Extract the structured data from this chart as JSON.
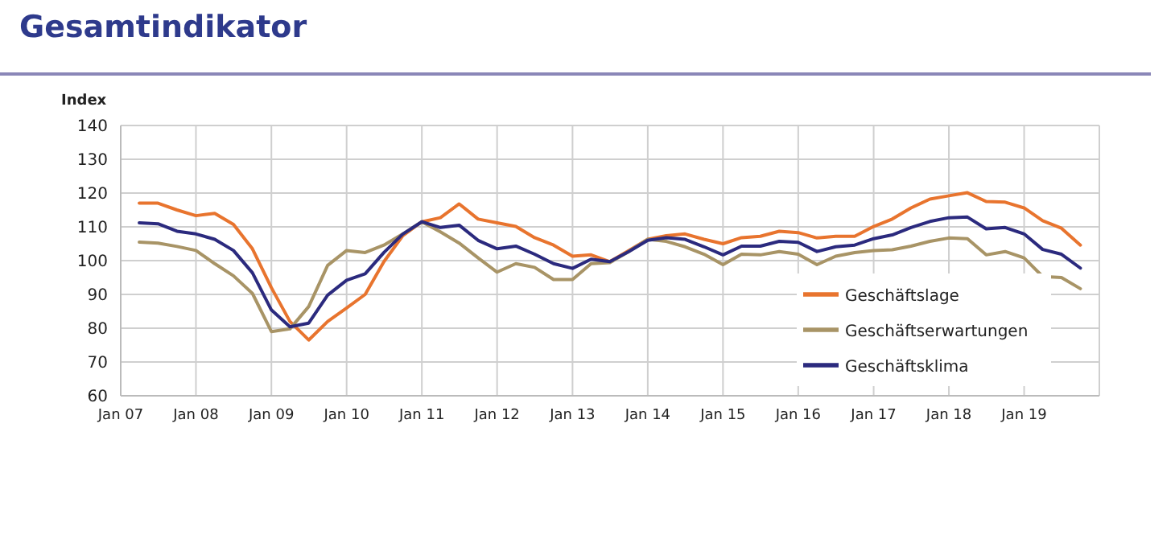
{
  "chart_data": {
    "type": "line",
    "title": "Gesamtindikator",
    "ylabel": "Index",
    "x": [
      "2007-04",
      "2007-07",
      "2007-10",
      "2008-01",
      "2008-04",
      "2008-07",
      "2008-10",
      "2009-01",
      "2009-04",
      "2009-07",
      "2009-10",
      "2010-01",
      "2010-04",
      "2010-07",
      "2010-10",
      "2011-01",
      "2011-04",
      "2011-07",
      "2011-10",
      "2012-01",
      "2012-04",
      "2012-07",
      "2012-10",
      "2013-01",
      "2013-04",
      "2013-07",
      "2013-10",
      "2014-01",
      "2014-04",
      "2014-07",
      "2014-10",
      "2015-01",
      "2015-04",
      "2015-07",
      "2015-10",
      "2016-01",
      "2016-04",
      "2016-07",
      "2016-10",
      "2017-01",
      "2017-04",
      "2017-07",
      "2017-10",
      "2018-01",
      "2018-04",
      "2018-07",
      "2018-10",
      "2019-01",
      "2019-04",
      "2019-07",
      "2019-10"
    ],
    "series": [
      {
        "name": "Geschäftslage",
        "color": "#e8742e",
        "values": [
          117,
          117,
          115,
          113.3,
          114,
          110.7,
          103.5,
          92,
          82,
          76.5,
          82,
          86,
          90,
          99.7,
          107.4,
          111.5,
          112.7,
          116.8,
          112.3,
          111.2,
          110.1,
          106.8,
          104.6,
          101.3,
          101.7,
          99.7,
          103,
          106.3,
          107.4,
          107.9,
          106.3,
          105,
          106.8,
          107.2,
          108.7,
          108.3,
          106.7,
          107.2,
          107.2,
          110.1,
          112.3,
          115.6,
          118.2,
          119.2,
          120.1,
          117.5,
          117.3,
          115.6,
          111.8,
          109.6,
          104.6
        ]
      },
      {
        "name": "Geschäftserwartungen",
        "color": "#a89466",
        "values": [
          105.5,
          105.2,
          104.2,
          103,
          99.1,
          95.5,
          90.3,
          79,
          79.8,
          86.4,
          98.6,
          103,
          102.4,
          104.6,
          107.9,
          111.5,
          108.5,
          105.2,
          100.8,
          96.6,
          99.1,
          98,
          94.4,
          94.4,
          99.1,
          99.4,
          102.7,
          106.3,
          105.7,
          104.1,
          101.9,
          98.8,
          101.9,
          101.7,
          102.7,
          101.9,
          98.8,
          101.3,
          102.4,
          103,
          103.2,
          104.3,
          105.7,
          106.7,
          106.5,
          101.7,
          102.7,
          100.8,
          95.3,
          95,
          91.7
        ]
      },
      {
        "name": "Geschäftsklima",
        "color": "#2b2a7e",
        "values": [
          111.2,
          110.9,
          108.7,
          107.9,
          106.3,
          103,
          96.4,
          85.4,
          80.4,
          81.5,
          89.8,
          94.2,
          96.1,
          102.4,
          107.9,
          111.5,
          109.8,
          110.5,
          106,
          103.5,
          104.3,
          101.9,
          99.1,
          97.7,
          100.4,
          99.7,
          102.7,
          106,
          106.8,
          106.3,
          104.1,
          101.7,
          104.3,
          104.3,
          105.7,
          105.4,
          102.7,
          104.1,
          104.6,
          106.5,
          107.6,
          109.8,
          111.6,
          112.7,
          112.9,
          109.4,
          109.8,
          107.9,
          103.3,
          101.9,
          97.8
        ]
      }
    ],
    "xlim": [
      "2007-01",
      "2020-01"
    ],
    "xticks": [
      {
        "value": "2007-01",
        "label": "Jan 07"
      },
      {
        "value": "2008-01",
        "label": "Jan 08"
      },
      {
        "value": "2009-01",
        "label": "Jan 09"
      },
      {
        "value": "2010-01",
        "label": "Jan 10"
      },
      {
        "value": "2011-01",
        "label": "Jan 11"
      },
      {
        "value": "2012-01",
        "label": "Jan 12"
      },
      {
        "value": "2013-01",
        "label": "Jan 13"
      },
      {
        "value": "2014-01",
        "label": "Jan 14"
      },
      {
        "value": "2015-01",
        "label": "Jan 15"
      },
      {
        "value": "2016-01",
        "label": "Jan 16"
      },
      {
        "value": "2017-01",
        "label": "Jan 17"
      },
      {
        "value": "2018-01",
        "label": "Jan 18"
      },
      {
        "value": "2019-01",
        "label": "Jan 19"
      },
      {
        "value": "2020-01",
        "label": null
      }
    ],
    "ylim": [
      60,
      140
    ],
    "yticks": [
      60,
      70,
      80,
      90,
      100,
      110,
      120,
      130,
      140
    ],
    "grid": true,
    "legend": "bottom right",
    "marker": "none",
    "line_style": "solid"
  }
}
